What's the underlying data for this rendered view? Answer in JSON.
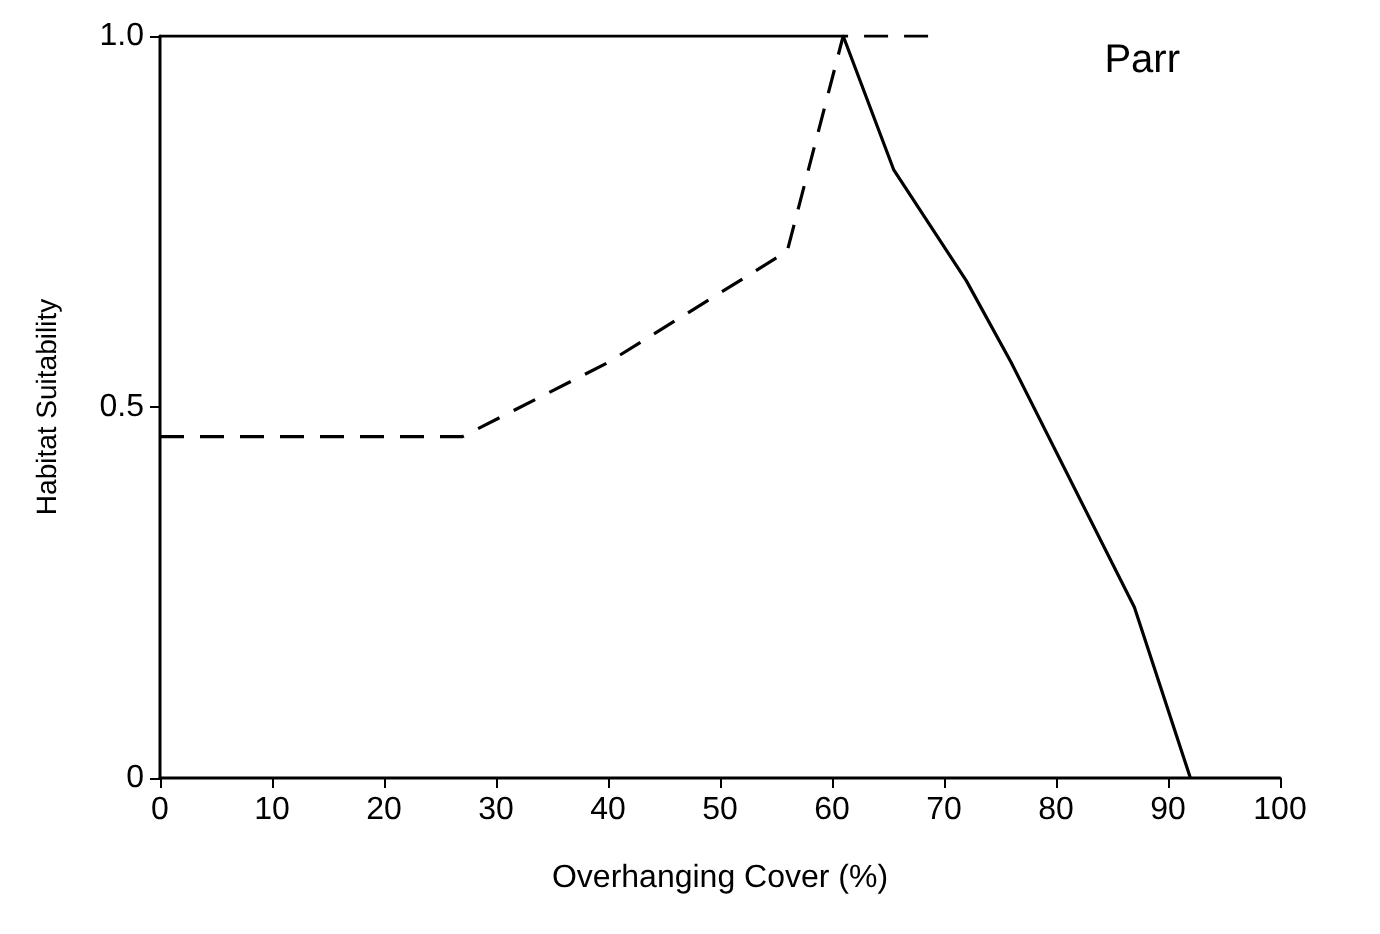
{
  "chart_data": {
    "type": "line",
    "xlabel": "Overhanging Cover (%)",
    "ylabel": "Habitat Suitability",
    "annotations": [
      "Parr"
    ],
    "series": [
      {
        "color": "#000000",
        "line_style": "solid",
        "x": [
          0,
          61,
          65.5,
          72,
          76,
          87,
          92
        ],
        "values": [
          1.0,
          1.0,
          0.82,
          0.67,
          0.56,
          0.23,
          0
        ]
      },
      {
        "color": "#000000",
        "line_style": "dashed",
        "x": [
          0,
          27,
          40,
          56,
          61,
          70
        ],
        "values": [
          0.46,
          0.46,
          0.56,
          0.71,
          1.0,
          1.0
        ]
      }
    ],
    "xlim": [
      0,
      100
    ],
    "xticks": [
      0,
      10,
      20,
      30,
      40,
      50,
      60,
      70,
      80,
      90,
      100
    ],
    "ylim": [
      0,
      1.0
    ],
    "yticks": [
      0,
      {
        "value": 0.5,
        "label": "0.5"
      },
      {
        "value": 1.0,
        "label": "1.0"
      }
    ],
    "grid": false,
    "marker": "none"
  }
}
